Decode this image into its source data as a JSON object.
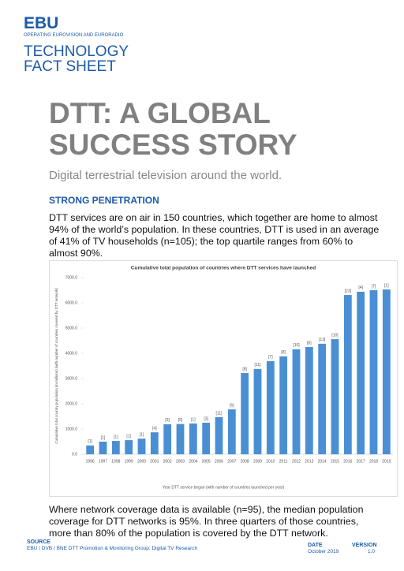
{
  "header": {
    "logo": "EBU",
    "tagline": "OPERATING EUROVISION AND EURORADIO",
    "doc_type": [
      "TECHNOLOGY",
      "FACT SHEET"
    ]
  },
  "title": [
    "DTT: A GLOBAL",
    "SUCCESS STORY"
  ],
  "subtitle": "Digital terrestrial television around the world.",
  "section_heading": "STRONG PENETRATION",
  "paragraphs": [
    "DTT services are on air in 150 countries, which together are home to almost 94% of the world’s population. In these countries, DTT is used in an average of 41% of TV households (n=105); the top quartile ranges from 60% to almost 90%.",
    "Where network coverage data is available (n=95), the median population coverage for DTT networks is 95%. In three quarters of those countries, more than 80% of the population is covered by the DTT network."
  ],
  "chart_data": {
    "type": "bar",
    "title": "Cumulative total population of countries where DTT services have launched",
    "x_label": "Year DTT service began (with number of countries launched per year)",
    "y_label": "Cumulative total country population (in millions) [with number of countries covered by DTT network]",
    "categories": [
      "1996",
      "1997",
      "1998",
      "1999",
      "2000",
      "2001",
      "2002",
      "2003",
      "2004",
      "2005",
      "2006",
      "2007",
      "2008",
      "2009",
      "2010",
      "2011",
      "2012",
      "2013",
      "2014",
      "2015",
      "2016",
      "2017",
      "2018",
      "2019"
    ],
    "values": [
      350,
      500,
      530,
      560,
      620,
      870,
      1190,
      1200,
      1220,
      1250,
      1470,
      1780,
      3220,
      3380,
      3690,
      3880,
      4160,
      4250,
      4380,
      4560,
      6310,
      6440,
      6500,
      6530
    ],
    "bar_labels": [
      "[1]",
      "[1]",
      "[1]",
      "[1]",
      "[1]",
      "[4]",
      "[3]",
      "[5]",
      "[1]",
      "[3]",
      "[11]",
      "[6]",
      "[8]",
      "[11]",
      "[7]",
      "[8]",
      "[10]",
      "[8]",
      "[13]",
      "[10]",
      "[23]",
      "[4]",
      "[7]",
      "[1]"
    ],
    "color": "#4a8fd4",
    "ylim": [
      0,
      7000
    ],
    "yticks": [
      {
        "value": 0,
        "label": "0.0"
      },
      {
        "value": 1000,
        "label": "1000.0"
      },
      {
        "value": 2000,
        "label": "2000.0"
      },
      {
        "value": 3000,
        "label": "3000.0"
      },
      {
        "value": 4000,
        "label": "4000.0"
      },
      {
        "value": 5000,
        "label": "5000.0"
      },
      {
        "value": 6000,
        "label": "6000.0"
      },
      {
        "value": 7000,
        "label": "7000.0"
      }
    ],
    "grid": false
  },
  "footer": {
    "source_label": "SOURCE",
    "source": "EBU / DVB / BNE DTT Promotion & Monitoring Group; Digital TV Research",
    "date_label": "DATE",
    "date": "October 2019",
    "version_label": "VERSION",
    "version": "1.0"
  }
}
